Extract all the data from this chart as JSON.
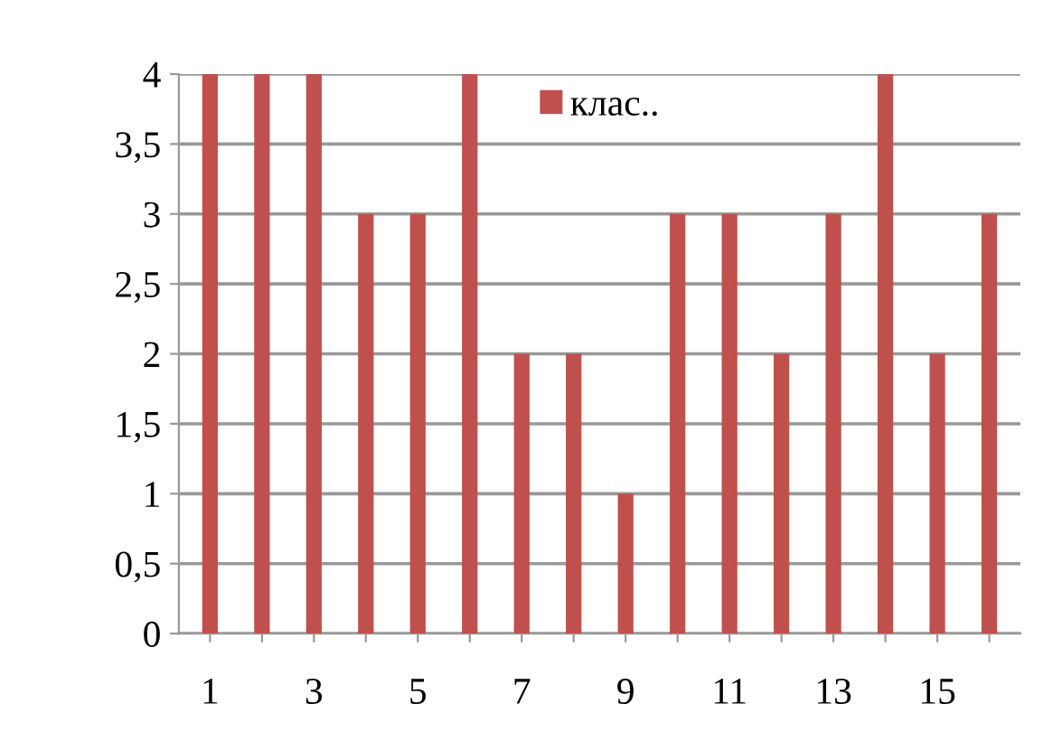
{
  "chart_data": {
    "type": "bar",
    "categories": [
      "1",
      null,
      "3",
      null,
      "5",
      null,
      "7",
      null,
      "9",
      null,
      "11",
      null,
      "13",
      null,
      "15",
      null
    ],
    "series": [
      {
        "name": "клас..",
        "color": "#c0504d",
        "values": [
          4,
          4,
          4,
          3,
          3,
          4,
          2,
          2,
          1,
          3,
          3,
          2,
          3,
          4,
          2,
          3
        ]
      }
    ],
    "ylim": [
      0,
      4
    ],
    "yticks": [
      0,
      {
        "value": 0.5,
        "label": "0,5"
      },
      1,
      {
        "value": 1.5,
        "label": "1,5"
      },
      2,
      {
        "value": 2.5,
        "label": "2,5"
      },
      3,
      {
        "value": 3.5,
        "label": "3,5"
      },
      4
    ],
    "grid": "y",
    "legend": "top"
  }
}
